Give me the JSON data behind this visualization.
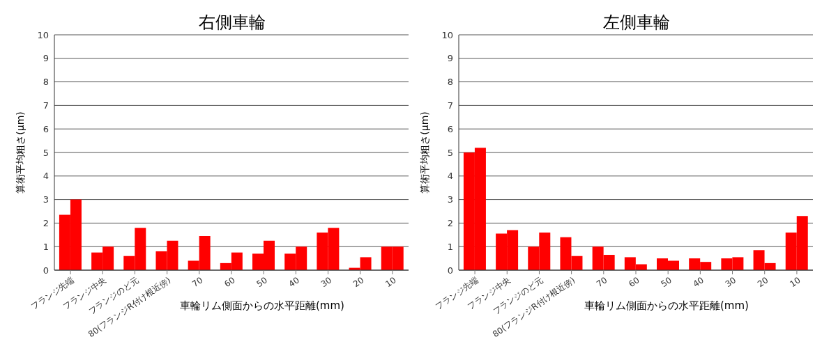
{
  "chart_data": [
    {
      "type": "bar",
      "title": "右側車輪",
      "xlabel": "車輪リム側面からの水平距離(mm)",
      "ylabel": "算術平均粗さ(μm)",
      "categories": [
        "フランジ先端",
        "フランジ中央",
        "フランジのど元",
        "80(フランジR付け根近傍)",
        "70",
        "60",
        "50",
        "40",
        "30",
        "20",
        "10"
      ],
      "series": [
        {
          "color": "#ff0000",
          "values": [
            2.35,
            0.75,
            0.6,
            0.8,
            0.4,
            0.3,
            0.7,
            0.7,
            1.6,
            0.1,
            1.0
          ]
        },
        {
          "color": "#ff0000",
          "values": [
            3.0,
            1.0,
            1.8,
            1.25,
            1.45,
            0.75,
            1.25,
            1.0,
            1.8,
            0.55,
            1.0
          ]
        }
      ],
      "ylim": [
        0,
        10
      ],
      "yticks": [
        0,
        1,
        2,
        3,
        4,
        5,
        6,
        7,
        8,
        9,
        10
      ],
      "grid": "y",
      "legend": false
    },
    {
      "type": "bar",
      "title": "左側車輪",
      "xlabel": "車輪リム側面からの水平距離(mm)",
      "ylabel": "算術平均粗さ(μm)",
      "categories": [
        "フランジ先端",
        "フランジ中央",
        "フランジのど元",
        "80(フランジR付け根近傍)",
        "70",
        "60",
        "50",
        "40",
        "30",
        "20",
        "10"
      ],
      "series": [
        {
          "color": "#ff0000",
          "values": [
            5.0,
            1.55,
            1.0,
            1.4,
            1.0,
            0.55,
            0.5,
            0.5,
            0.5,
            0.85,
            1.6
          ]
        },
        {
          "color": "#ff0000",
          "values": [
            5.2,
            1.7,
            1.6,
            0.6,
            0.65,
            0.25,
            0.4,
            0.35,
            0.55,
            0.3,
            2.3
          ]
        }
      ],
      "ylim": [
        0,
        10
      ],
      "yticks": [
        0,
        1,
        2,
        3,
        4,
        5,
        6,
        7,
        8,
        9,
        10
      ],
      "grid": "y",
      "legend": false
    }
  ]
}
